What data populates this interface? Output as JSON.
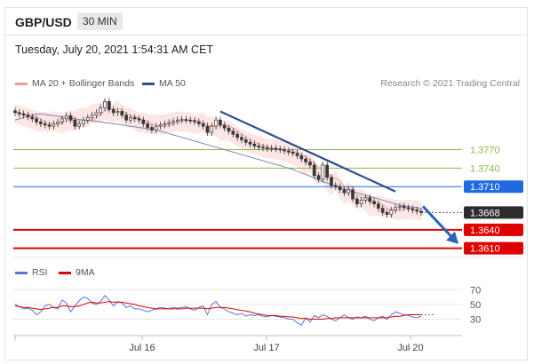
{
  "header": {
    "symbol": "GBP/USD",
    "timeframe": "30 MIN"
  },
  "datetime": "Tuesday, July 20, 2021 1:54:31 AM CET",
  "legend": {
    "bollinger": "MA 20 + Bollinger Bands",
    "ma50": "MA 50",
    "credit": "Research © 2021 Trading Central"
  },
  "rsi_legend": {
    "rsi": "RSI",
    "ma9": "9MA"
  },
  "colors": {
    "resistance": "#8ab84a",
    "pivot": "#1f6ae0",
    "support": "#e00000",
    "current": "#2d2d2d",
    "ma50": "#2f4f8f",
    "bollinger": "#f2a0a0",
    "rsi": "#5578d8",
    "rsi_ma": "#e00000"
  },
  "chart_data": [
    {
      "type": "candlestick",
      "title": "GBP/USD",
      "x_ticks": [
        "Jul 16",
        "Jul 17",
        "Jul 20"
      ],
      "levels": [
        {
          "label": "1.3770",
          "value": 1.377,
          "kind": "resistance"
        },
        {
          "label": "1.3740",
          "value": 1.374,
          "kind": "resistance"
        },
        {
          "label": "1.3710",
          "value": 1.371,
          "kind": "pivot"
        },
        {
          "label": "1.3668",
          "value": 1.3668,
          "kind": "current"
        },
        {
          "label": "1.3640",
          "value": 1.364,
          "kind": "support"
        },
        {
          "label": "1.3610",
          "value": 1.361,
          "kind": "support"
        }
      ],
      "close": [
        1.383,
        1.3828,
        1.3826,
        1.3823,
        1.382,
        1.3815,
        1.3812,
        1.381,
        1.3808,
        1.3812,
        1.3815,
        1.382,
        1.3825,
        1.3818,
        1.3808,
        1.3812,
        1.3818,
        1.3822,
        1.3826,
        1.383,
        1.3838,
        1.3848,
        1.3835,
        1.383,
        1.3832,
        1.3826,
        1.3818,
        1.3822,
        1.382,
        1.3818,
        1.3812,
        1.3806,
        1.3802,
        1.3808,
        1.381,
        1.3812,
        1.3814,
        1.3816,
        1.3818,
        1.3819,
        1.3818,
        1.3817,
        1.3815,
        1.3812,
        1.3808,
        1.3798,
        1.3808,
        1.3818,
        1.381,
        1.3805,
        1.38,
        1.3795,
        1.379,
        1.3786,
        1.3782,
        1.3779,
        1.3776,
        1.3774,
        1.3773,
        1.3772,
        1.3772,
        1.3771,
        1.377,
        1.3768,
        1.3766,
        1.3764,
        1.376,
        1.3755,
        1.375,
        1.3745,
        1.3728,
        1.3722,
        1.3745,
        1.3725,
        1.3712,
        1.371,
        1.3705,
        1.37,
        1.3705,
        1.369,
        1.3682,
        1.3688,
        1.3692,
        1.3686,
        1.3682,
        1.3675,
        1.3668,
        1.3665,
        1.3672,
        1.3676,
        1.3678,
        1.3676,
        1.3674,
        1.3672,
        1.367,
        1.3668
      ],
      "high_low_spread": 0.0012,
      "ma50": [
        1.3818,
        1.382,
        1.3822,
        1.3824,
        1.3826,
        1.3828,
        1.3828,
        1.3827,
        1.3826,
        1.3825,
        1.3824,
        1.3823,
        1.3822,
        1.3821,
        1.382,
        1.3819,
        1.3818,
        1.3818,
        1.3817,
        1.3816,
        1.3815,
        1.3814,
        1.3813,
        1.3812,
        1.3811,
        1.381,
        1.3809,
        1.3808,
        1.3807,
        1.3806,
        1.3805,
        1.3804,
        1.3803,
        1.3802,
        1.38,
        1.3798,
        1.3796,
        1.3794,
        1.3792,
        1.379,
        1.3788,
        1.3786,
        1.3784,
        1.3782,
        1.378,
        1.3778,
        1.3776,
        1.3774,
        1.3772,
        1.377,
        1.3768,
        1.3766,
        1.3764,
        1.3762,
        1.376,
        1.3758,
        1.3756,
        1.3754,
        1.3752,
        1.375,
        1.3748,
        1.3746,
        1.3744,
        1.3742,
        1.374,
        1.3738,
        1.3735,
        1.3732,
        1.373,
        1.3727,
        1.3724,
        1.3721,
        1.3718,
        1.3716,
        1.3713,
        1.371,
        1.3708,
        1.3706,
        1.3704,
        1.3702,
        1.37,
        1.3698,
        1.3696,
        1.3694,
        1.3692,
        1.369,
        1.3688,
        1.3686,
        1.3684,
        1.3682,
        1.368,
        1.3679,
        1.3678,
        1.3677,
        1.3676,
        1.3675
      ],
      "bollinger_width": 0.0016,
      "trendline": {
        "start_index": 48,
        "start_value": 1.3832,
        "end_index": 89,
        "end_value": 1.3702
      },
      "ylim": [
        1.3598,
        1.385
      ]
    },
    {
      "type": "line",
      "title": "RSI",
      "y_ticks": [
        70,
        50,
        30
      ],
      "ylim": [
        15,
        80
      ],
      "rsi": [
        50,
        47,
        44,
        45,
        42,
        36,
        40,
        48,
        50,
        46,
        44,
        56,
        52,
        40,
        48,
        55,
        60,
        58,
        52,
        50,
        54,
        62,
        56,
        48,
        54,
        52,
        46,
        48,
        44,
        44,
        42,
        40,
        42,
        44,
        46,
        45,
        44,
        46,
        45,
        46,
        47,
        44,
        42,
        46,
        48,
        36,
        50,
        54,
        46,
        44,
        40,
        38,
        36,
        38,
        34,
        36,
        35,
        36,
        34,
        33,
        35,
        34,
        33,
        32,
        30,
        30,
        25,
        22,
        32,
        26,
        35,
        32,
        36,
        34,
        30,
        28,
        32,
        36,
        32,
        30,
        33,
        32,
        34,
        30,
        28,
        32,
        34,
        30,
        36,
        40,
        38,
        36,
        35,
        33,
        32,
        34
      ],
      "ma9": [
        48,
        47,
        46,
        46,
        45,
        44,
        43,
        44,
        45,
        46,
        46,
        48,
        48,
        47,
        47,
        48,
        50,
        52,
        53,
        52,
        52,
        53,
        54,
        53,
        53,
        53,
        52,
        51,
        50,
        48,
        47,
        46,
        45,
        44,
        44,
        44,
        44,
        44,
        44,
        44,
        45,
        45,
        45,
        45,
        45,
        44,
        45,
        46,
        46,
        46,
        45,
        44,
        43,
        42,
        41,
        40,
        38,
        37,
        36,
        35,
        35,
        35,
        34,
        34,
        33,
        33,
        32,
        31,
        31,
        30,
        30,
        30,
        30,
        31,
        31,
        32,
        32,
        32,
        32,
        32,
        32,
        32,
        32,
        32,
        32,
        32,
        32,
        32,
        33,
        34,
        34,
        35,
        36,
        36,
        36,
        36
      ]
    }
  ]
}
